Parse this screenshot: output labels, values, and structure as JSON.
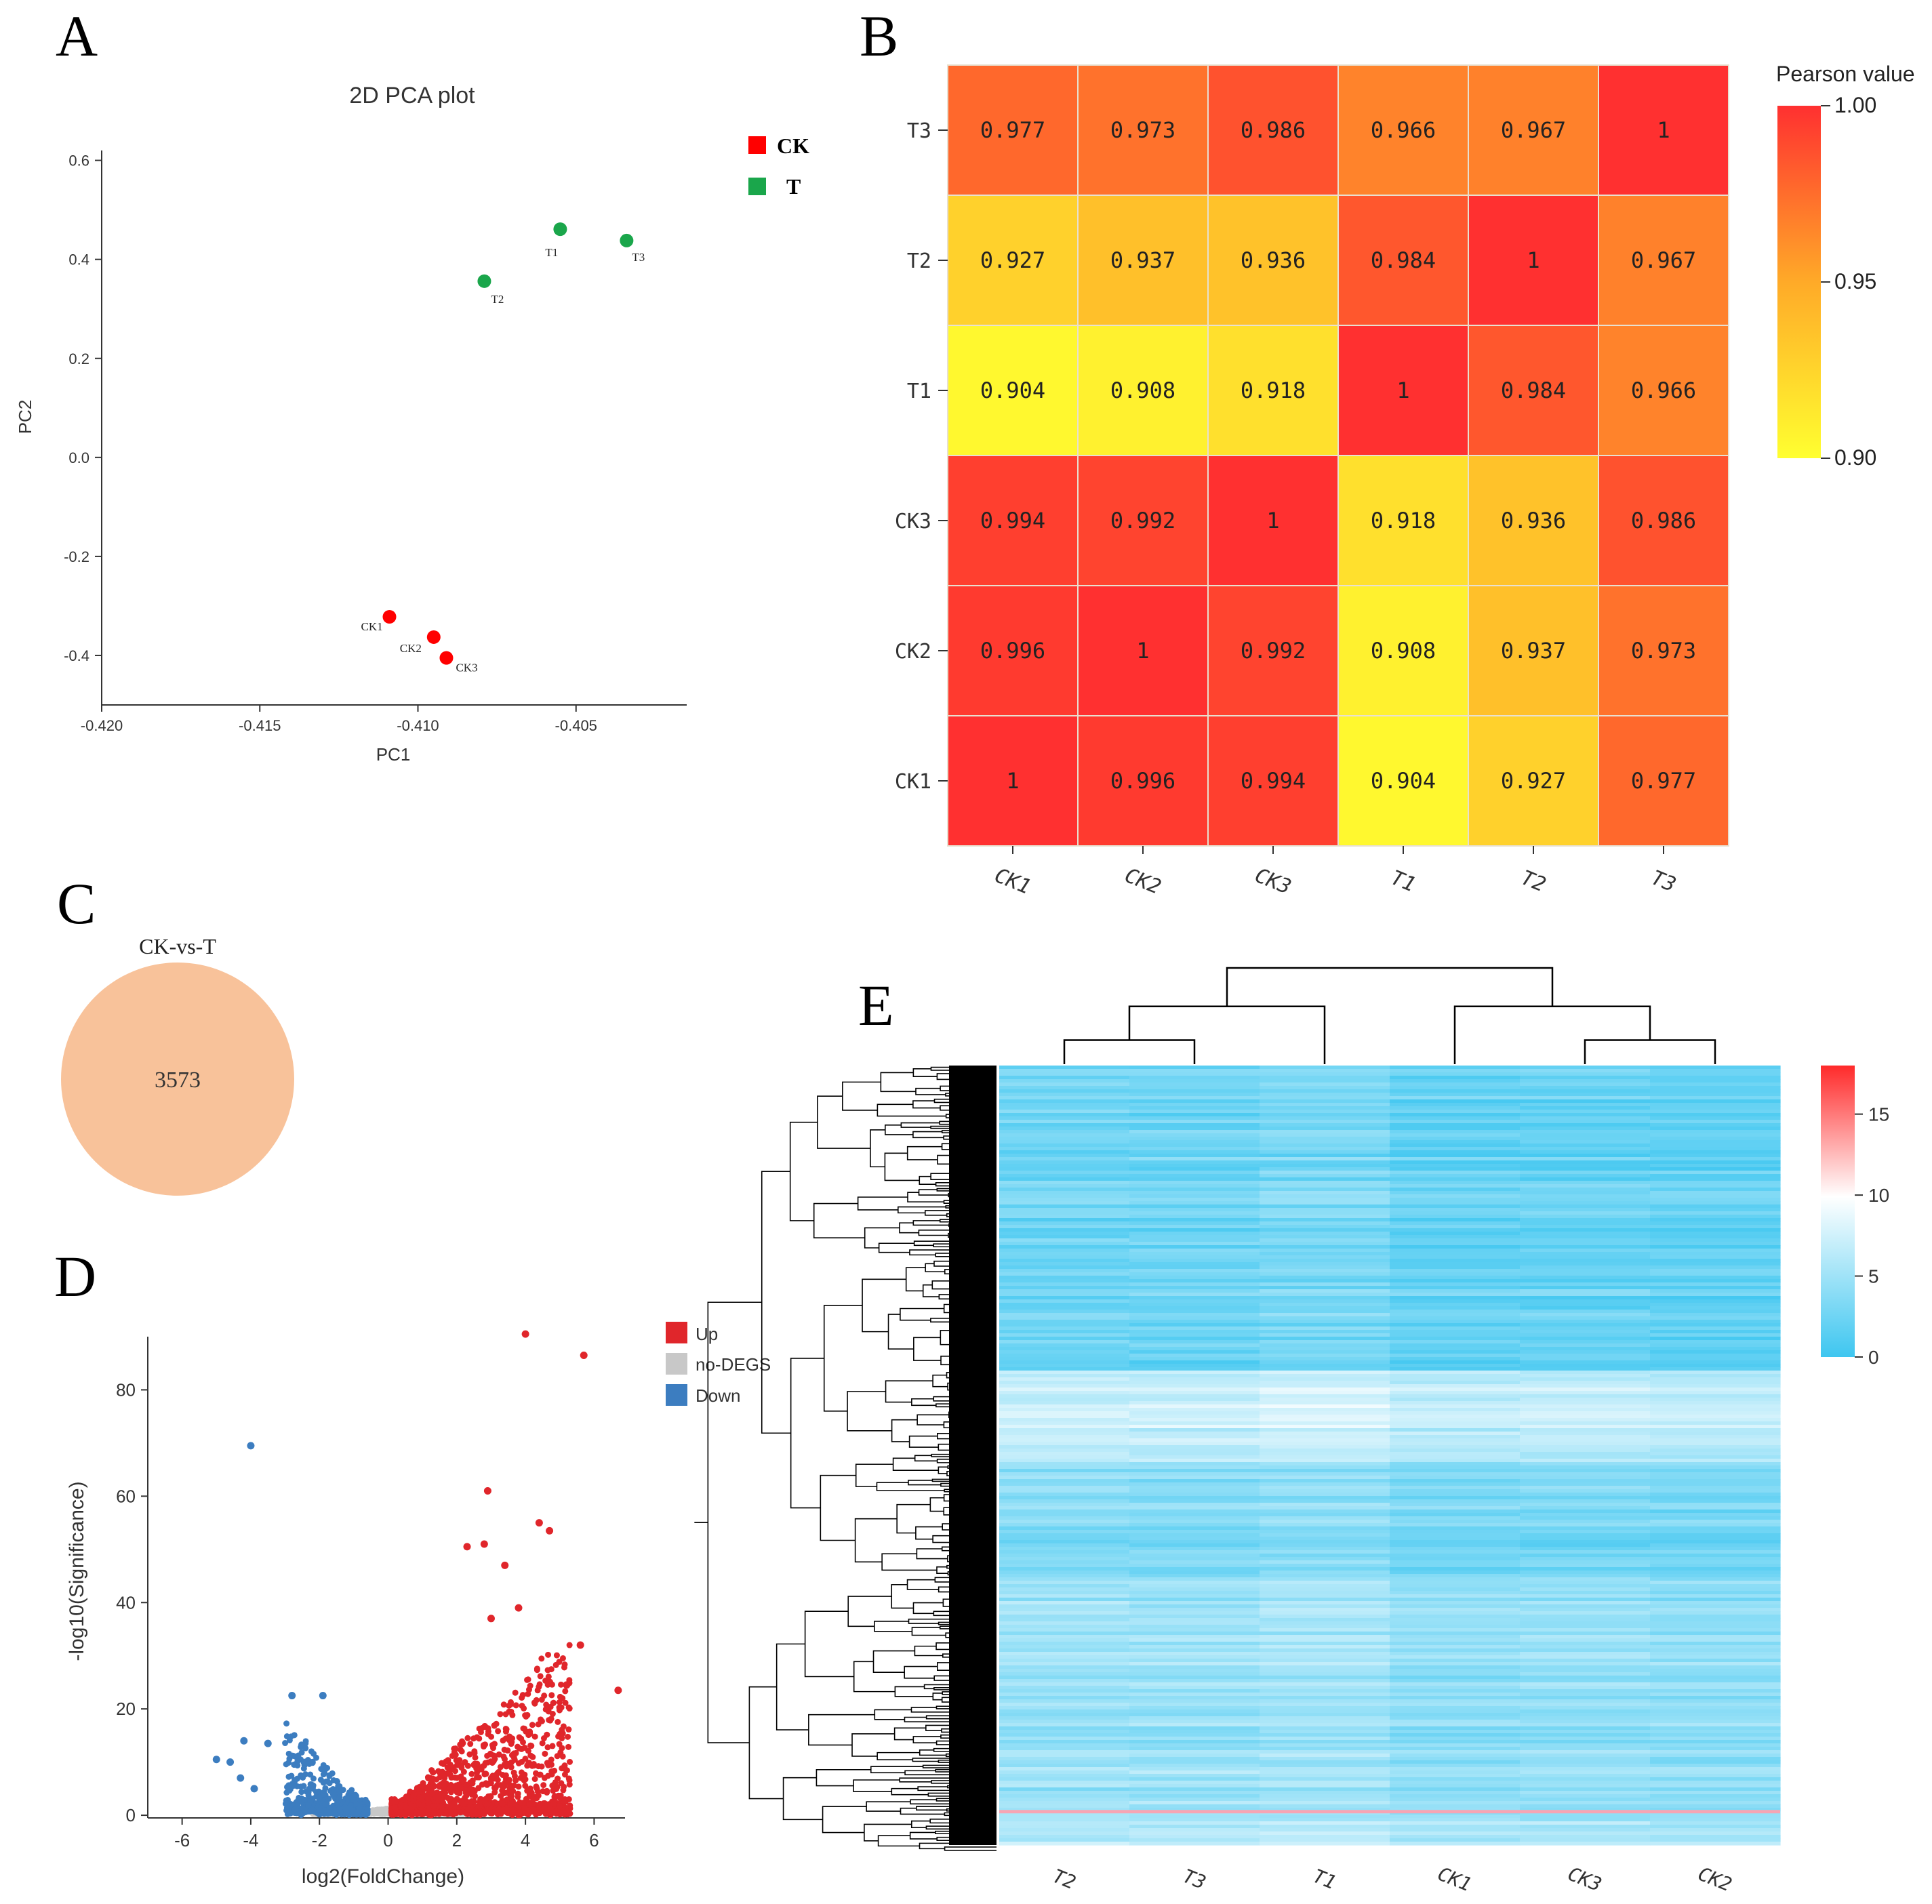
{
  "panels": {
    "a": "A",
    "b": "B",
    "c": "C",
    "d": "D",
    "e": "E"
  },
  "colors": {
    "ck": "#ff0000",
    "t": "#1aa64b",
    "up": "#e0262b",
    "down": "#3c7dc0",
    "nodegs": "#c8c8c8",
    "venn": "#f8c29a",
    "heat_hi": "#ff2a2a",
    "heat_mid": "#ffffff",
    "heat_lo": "#3ec6f0",
    "pearson_hi": "#ff3030",
    "pearson_mid": "#ffaa28",
    "pearson_lo": "#ffff30"
  },
  "chart_data": [
    {
      "panel": "A",
      "type": "scatter",
      "title": "2D PCA plot",
      "xlabel": "PC1",
      "ylabel": "PC2",
      "xlim": [
        -0.42,
        -0.4015
      ],
      "ylim": [
        -0.5,
        0.62
      ],
      "xticks": [
        -0.42,
        -0.415,
        -0.41,
        -0.405
      ],
      "xtick_labels": [
        "-0.420",
        "-0.415",
        "-0.410",
        "-0.405"
      ],
      "yticks": [
        0.6,
        0.4,
        0.2,
        0.0,
        -0.2,
        -0.4
      ],
      "ytick_labels": [
        "0.6",
        "0.4",
        "0.2",
        "0.0",
        "-0.2",
        "-0.4"
      ],
      "legend": [
        {
          "name": "CK",
          "color": "#ff0000"
        },
        {
          "name": "T",
          "color": "#1aa64b"
        }
      ],
      "points": [
        {
          "label": "CK1",
          "group": "CK",
          "x": -0.4109,
          "y": -0.322
        },
        {
          "label": "CK2",
          "group": "CK",
          "x": -0.4095,
          "y": -0.363
        },
        {
          "label": "CK3",
          "group": "CK",
          "x": -0.4091,
          "y": -0.405
        },
        {
          "label": "T1",
          "group": "T",
          "x": -0.4055,
          "y": 0.461
        },
        {
          "label": "T2",
          "group": "T",
          "x": -0.4079,
          "y": 0.356
        },
        {
          "label": "T3",
          "group": "T",
          "x": -0.4034,
          "y": 0.438
        }
      ]
    },
    {
      "panel": "B",
      "type": "heatmap",
      "legend_title": "Pearson value",
      "scale_labels": [
        "1.00",
        "0.95",
        "0.90"
      ],
      "scale_range": [
        0.9,
        1.0
      ],
      "rows": [
        "T3",
        "T2",
        "T1",
        "CK3",
        "CK2",
        "CK1"
      ],
      "columns": [
        "CK1",
        "CK2",
        "CK3",
        "T1",
        "T2",
        "T3"
      ],
      "values": [
        [
          0.977,
          0.973,
          0.986,
          0.966,
          0.967,
          1
        ],
        [
          0.927,
          0.937,
          0.936,
          0.984,
          1,
          0.967
        ],
        [
          0.904,
          0.908,
          0.918,
          1,
          0.984,
          0.966
        ],
        [
          0.994,
          0.992,
          1,
          0.918,
          0.936,
          0.986
        ],
        [
          0.996,
          1,
          0.992,
          0.908,
          0.937,
          0.973
        ],
        [
          1,
          0.996,
          0.994,
          0.904,
          0.927,
          0.977
        ]
      ],
      "labels": [
        [
          "0.977",
          "0.973",
          "0.986",
          "0.966",
          "0.967",
          "1"
        ],
        [
          "0.927",
          "0.937",
          "0.936",
          "0.984",
          "1",
          "0.967"
        ],
        [
          "0.904",
          "0.908",
          "0.918",
          "1",
          "0.984",
          "0.966"
        ],
        [
          "0.994",
          "0.992",
          "1",
          "0.918",
          "0.936",
          "0.986"
        ],
        [
          "0.996",
          "1",
          "0.992",
          "0.908",
          "0.937",
          "0.973"
        ],
        [
          "1",
          "0.996",
          "0.994",
          "0.904",
          "0.927",
          "0.977"
        ]
      ]
    },
    {
      "panel": "C",
      "type": "venn",
      "title": "CK-vs-T",
      "value": "3573"
    },
    {
      "panel": "D",
      "type": "scatter",
      "subtype": "volcano",
      "xlabel": "log2(FoldChange)",
      "ylabel": "-log10(Significance)",
      "xlim": [
        -7,
        6.9
      ],
      "ylim": [
        -0.5,
        90
      ],
      "xticks": [
        -6,
        -4,
        -2,
        0,
        2,
        4,
        6
      ],
      "xtick_labels": [
        "-6",
        "-4",
        "-2",
        "0",
        "2",
        "4",
        "6"
      ],
      "yticks": [
        0,
        20,
        40,
        60,
        80
      ],
      "ytick_labels": [
        "0",
        "20",
        "40",
        "60",
        "80"
      ],
      "legend": [
        {
          "name": "Up",
          "color": "#e0262b"
        },
        {
          "name": "no-DEGS",
          "color": "#c8c8c8"
        },
        {
          "name": "Down",
          "color": "#3c7dc0"
        }
      ],
      "highlighted_points": [
        {
          "group": "Up",
          "x": 4.0,
          "y": 90.5
        },
        {
          "group": "Up",
          "x": 5.7,
          "y": 86.5
        },
        {
          "group": "Up",
          "x": 2.9,
          "y": 61
        },
        {
          "group": "Up",
          "x": 4.4,
          "y": 55
        },
        {
          "group": "Up",
          "x": 4.7,
          "y": 53.5
        },
        {
          "group": "Up",
          "x": 2.3,
          "y": 50.5
        },
        {
          "group": "Up",
          "x": 2.8,
          "y": 51
        },
        {
          "group": "Up",
          "x": 3.4,
          "y": 47
        },
        {
          "group": "Up",
          "x": 5.6,
          "y": 32
        },
        {
          "group": "Up",
          "x": 6.7,
          "y": 23.5
        },
        {
          "group": "Up",
          "x": 4.7,
          "y": 25
        },
        {
          "group": "Up",
          "x": 5.2,
          "y": 24.5
        },
        {
          "group": "Up",
          "x": 3.8,
          "y": 39
        },
        {
          "group": "Up",
          "x": 3.0,
          "y": 37
        },
        {
          "group": "Down",
          "x": -4.0,
          "y": 69.5
        },
        {
          "group": "Down",
          "x": -5.0,
          "y": 10.5
        },
        {
          "group": "Down",
          "x": -4.6,
          "y": 10
        },
        {
          "group": "Down",
          "x": -4.2,
          "y": 14
        },
        {
          "group": "Down",
          "x": -3.5,
          "y": 13.5
        },
        {
          "group": "Down",
          "x": -3.9,
          "y": 5
        },
        {
          "group": "Down",
          "x": -2.8,
          "y": 22.5
        },
        {
          "group": "Down",
          "x": -1.9,
          "y": 22.5
        },
        {
          "group": "Down",
          "x": -4.3,
          "y": 7
        }
      ]
    },
    {
      "panel": "E",
      "type": "heatmap",
      "subtype": "clustered",
      "columns": [
        "T2",
        "T3",
        "T1",
        "CK1",
        "CK3",
        "CK2"
      ],
      "scale_labels": [
        "15",
        "10",
        "5",
        "0"
      ],
      "scale_values": [
        15,
        10,
        5,
        0
      ],
      "scale_range": [
        0,
        18
      ],
      "column_means": [
        3.2,
        3.1,
        3.6,
        2.6,
        2.7,
        2.5
      ],
      "row_blocks": [
        {
          "fraction": 0.39,
          "mean": 2.4
        },
        {
          "fraction": 0.12,
          "mean": 7.0
        },
        {
          "fraction": 0.15,
          "mean": 3.4
        },
        {
          "fraction": 0.3,
          "mean": 4.6
        },
        {
          "fraction": 0.04,
          "mean": 5.8
        }
      ],
      "column_tree": [
        {
          "top": [
            "T2",
            "T3"
          ],
          "height": 0.25
        },
        {
          "top": [
            "T2T3",
            "T1"
          ],
          "height": 0.6
        },
        {
          "top": [
            "CK3",
            "CK2"
          ],
          "height": 0.25
        },
        {
          "top": [
            "CK1",
            "CK3CK2"
          ],
          "height": 0.6
        },
        {
          "top": [
            "T",
            "CK"
          ],
          "height": 1.0
        }
      ]
    }
  ]
}
